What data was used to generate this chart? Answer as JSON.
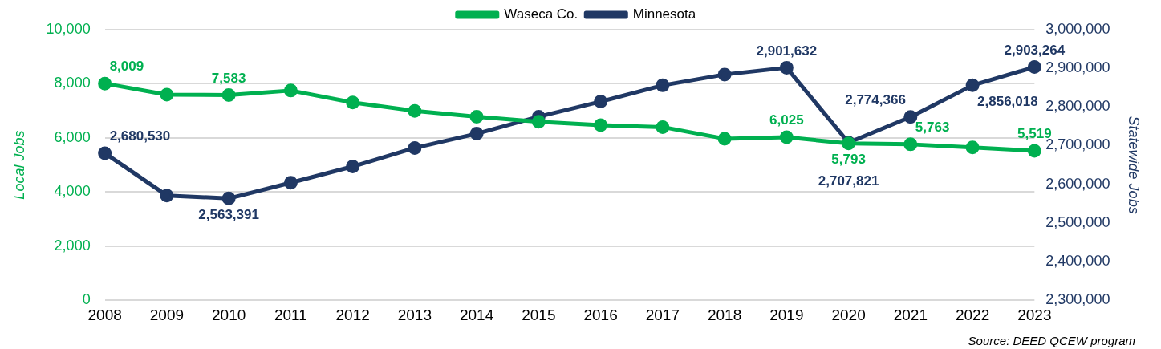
{
  "chart_data": {
    "type": "line",
    "categories": [
      "2008",
      "2009",
      "2010",
      "2011",
      "2012",
      "2013",
      "2014",
      "2015",
      "2016",
      "2017",
      "2018",
      "2019",
      "2020",
      "2021",
      "2022",
      "2023"
    ],
    "series": [
      {
        "name": "Waseca Co.",
        "color": "#00b050",
        "values": [
          8009,
          7600,
          7583,
          7750,
          7310,
          7000,
          6780,
          6600,
          6470,
          6400,
          5970,
          6025,
          5793,
          5763,
          5650,
          5519
        ],
        "value_labels": [
          "8,009",
          null,
          "7,583",
          null,
          null,
          null,
          null,
          null,
          null,
          null,
          null,
          "6,025",
          "5,793",
          "5,763",
          null,
          "5,519"
        ]
      },
      {
        "name": "Minnesota",
        "color": "#203864",
        "axis": "y2",
        "values": [
          2680530,
          2571000,
          2563391,
          2604000,
          2646000,
          2694000,
          2731000,
          2775000,
          2814000,
          2856000,
          2884000,
          2901632,
          2707821,
          2774366,
          2856018,
          2903264
        ],
        "value_labels": [
          "2,680,530",
          null,
          "2,563,391",
          null,
          null,
          null,
          null,
          null,
          null,
          null,
          null,
          "2,901,632",
          "2,707,821",
          "2,774,366",
          "2,856,018",
          "2,903,264"
        ]
      }
    ],
    "ylabel": "Local Jobs",
    "y2label": "Statewide Jobs",
    "ylim": [
      0,
      10000
    ],
    "yticks": [
      {
        "value": 0,
        "label": "0"
      },
      {
        "value": 2000,
        "label": "2,000"
      },
      {
        "value": 4000,
        "label": "4,000"
      },
      {
        "value": 6000,
        "label": "6,000"
      },
      {
        "value": 8000,
        "label": "8,000"
      },
      {
        "value": 10000,
        "label": "10,000"
      }
    ],
    "y2lim": [
      2300000,
      3000000
    ],
    "y2ticks": [
      {
        "value": 2300000,
        "label": "2,300,000"
      },
      {
        "value": 2400000,
        "label": "2,400,000"
      },
      {
        "value": 2500000,
        "label": "2,500,000"
      },
      {
        "value": 2600000,
        "label": "2,600,000"
      },
      {
        "value": 2700000,
        "label": "2,700,000"
      },
      {
        "value": 2800000,
        "label": "2,800,000"
      },
      {
        "value": 2900000,
        "label": "2,900,000"
      },
      {
        "value": 3000000,
        "label": "3,000,000"
      }
    ],
    "grid": "y",
    "legend": "top",
    "marker": "circle",
    "line_style": "solid",
    "annotations": [
      "Source: DEED QCEW program"
    ]
  }
}
